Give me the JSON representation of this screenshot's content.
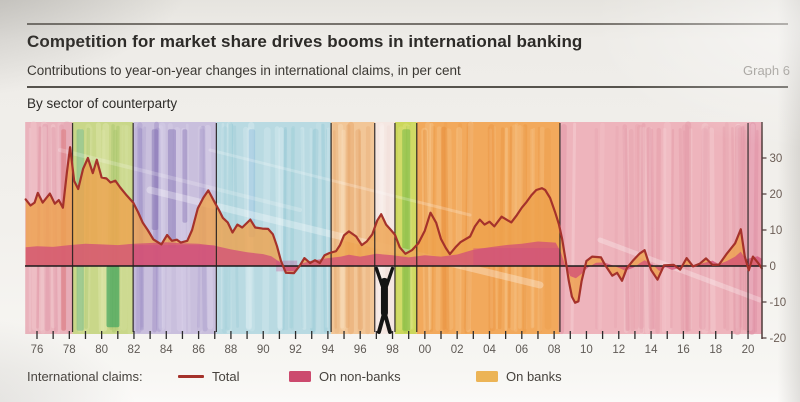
{
  "page": {
    "title": "Competition for market share drives booms in international banking",
    "subtitle": "Contributions to year-on-year changes in international claims, in per cent",
    "graph_label": "Graph 6",
    "panel_label": "By sector of counterparty"
  },
  "legend": {
    "prefix": "International claims:",
    "items": [
      {
        "label": "Total",
        "type": "line",
        "color": "#a5322b"
      },
      {
        "label": "On non-banks",
        "type": "area",
        "color": "#cc4a6e"
      },
      {
        "label": "On banks",
        "type": "area",
        "color": "#ecb456"
      }
    ]
  },
  "chart_data": {
    "type": "area",
    "title": "Competition for market share drives booms in international banking",
    "subtitle": "Contributions to year-on-year changes in international claims, in per cent",
    "panel": "By sector of counterparty",
    "xlabel": "",
    "ylabel": "per cent",
    "ylim": [
      -20,
      40
    ],
    "yticks": [
      [
        30,
        "30"
      ],
      [
        20,
        "20"
      ],
      [
        10,
        "10"
      ],
      [
        0,
        "0"
      ],
      [
        -10,
        "-10"
      ],
      [
        -20,
        "-20"
      ]
    ],
    "ytick_side": "right",
    "xtick_years_minor": [
      1976,
      2020
    ],
    "xticks": [
      [
        1976,
        "76"
      ],
      [
        1978,
        "78"
      ],
      [
        1980,
        "80"
      ],
      [
        1982,
        "82"
      ],
      [
        1984,
        "84"
      ],
      [
        1986,
        "86"
      ],
      [
        1988,
        "88"
      ],
      [
        1990,
        "90"
      ],
      [
        1992,
        "92"
      ],
      [
        1994,
        "94"
      ],
      [
        1996,
        "96"
      ],
      [
        1998,
        "98"
      ],
      [
        2000,
        "00"
      ],
      [
        2002,
        "02"
      ],
      [
        2004,
        "04"
      ],
      [
        2006,
        "06"
      ],
      [
        2008,
        "08"
      ],
      [
        2010,
        "10"
      ],
      [
        2012,
        "12"
      ],
      [
        2014,
        "14"
      ],
      [
        2016,
        "16"
      ],
      [
        2018,
        "18"
      ],
      [
        2020,
        "20"
      ]
    ],
    "grid": false,
    "legend_position": "bottom",
    "series": [
      {
        "name": "Total",
        "type": "line",
        "color": "#a5322b",
        "points": [
          [
            1975.3,
            18.5
          ],
          [
            1975.6,
            16.8
          ],
          [
            1975.85,
            17.6
          ],
          [
            1976.05,
            20.3
          ],
          [
            1976.35,
            17.6
          ],
          [
            1976.8,
            20.1
          ],
          [
            1977.1,
            17.3
          ],
          [
            1977.35,
            18.3
          ],
          [
            1977.6,
            16.2
          ],
          [
            1977.85,
            26
          ],
          [
            1978.05,
            33
          ],
          [
            1978.3,
            23.6
          ],
          [
            1978.55,
            21.4
          ],
          [
            1978.85,
            27
          ],
          [
            1979.15,
            30
          ],
          [
            1979.45,
            25.8
          ],
          [
            1979.7,
            29.5
          ],
          [
            1980,
            24.6
          ],
          [
            1980.3,
            24.3
          ],
          [
            1980.55,
            23.2
          ],
          [
            1980.85,
            23.7
          ],
          [
            1981.15,
            21.8
          ],
          [
            1981.55,
            19.6
          ],
          [
            1981.95,
            17.6
          ],
          [
            1982.25,
            15
          ],
          [
            1982.55,
            12
          ],
          [
            1982.85,
            10
          ],
          [
            1983.2,
            7.4
          ],
          [
            1983.7,
            6
          ],
          [
            1984.05,
            8.6
          ],
          [
            1984.35,
            7
          ],
          [
            1984.65,
            7.3
          ],
          [
            1984.9,
            6.5
          ],
          [
            1985.3,
            7
          ],
          [
            1985.6,
            10
          ],
          [
            1985.95,
            16
          ],
          [
            1986.3,
            19
          ],
          [
            1986.6,
            21
          ],
          [
            1987,
            17.6
          ],
          [
            1987.25,
            15.6
          ],
          [
            1987.5,
            13.4
          ],
          [
            1987.8,
            12.1
          ],
          [
            1988.1,
            9.3
          ],
          [
            1988.4,
            11.5
          ],
          [
            1988.7,
            10.7
          ],
          [
            1989.2,
            12.9
          ],
          [
            1989.5,
            10.7
          ],
          [
            1989.95,
            10.4
          ],
          [
            1990.3,
            10.3
          ],
          [
            1990.6,
            8.8
          ],
          [
            1990.85,
            5.5
          ],
          [
            1991.1,
            1.4
          ],
          [
            1991.4,
            -1.9
          ],
          [
            1991.9,
            -2
          ],
          [
            1992.25,
            0
          ],
          [
            1992.55,
            2.2
          ],
          [
            1992.9,
            0.8
          ],
          [
            1993.2,
            1.6
          ],
          [
            1993.5,
            0.8
          ],
          [
            1993.8,
            3
          ],
          [
            1994.1,
            3.6
          ],
          [
            1994.5,
            4.1
          ],
          [
            1994.75,
            5.8
          ],
          [
            1995,
            8.5
          ],
          [
            1995.3,
            9.6
          ],
          [
            1995.75,
            8.2
          ],
          [
            1996.1,
            5.8
          ],
          [
            1996.4,
            6.8
          ],
          [
            1996.75,
            8.8
          ],
          [
            1997.05,
            12.6
          ],
          [
            1997.3,
            14.4
          ],
          [
            1997.6,
            11.5
          ],
          [
            1997.9,
            10
          ],
          [
            1998.15,
            8.7
          ],
          [
            1998.45,
            5.2
          ],
          [
            1998.8,
            3.4
          ],
          [
            1999.2,
            4.4
          ],
          [
            1999.6,
            6.3
          ],
          [
            2000,
            9.8
          ],
          [
            2000.35,
            14.8
          ],
          [
            2000.7,
            12
          ],
          [
            2001,
            7.5
          ],
          [
            2001.3,
            5
          ],
          [
            2001.55,
            3.3
          ],
          [
            2001.9,
            5.2
          ],
          [
            2002.2,
            6.6
          ],
          [
            2002.8,
            8.2
          ],
          [
            2003.1,
            11
          ],
          [
            2003.4,
            12.9
          ],
          [
            2003.7,
            11.5
          ],
          [
            2004,
            12.3
          ],
          [
            2004.3,
            11
          ],
          [
            2004.75,
            13.7
          ],
          [
            2005.05,
            12.9
          ],
          [
            2005.35,
            12.1
          ],
          [
            2005.7,
            14.2
          ],
          [
            2006,
            16.2
          ],
          [
            2006.3,
            17.8
          ],
          [
            2006.6,
            19.7
          ],
          [
            2006.9,
            21.1
          ],
          [
            2007.25,
            21.6
          ],
          [
            2007.45,
            21.1
          ],
          [
            2007.75,
            18.9
          ],
          [
            2008.05,
            15.1
          ],
          [
            2008.3,
            11.5
          ],
          [
            2008.5,
            7.4
          ],
          [
            2008.7,
            2
          ],
          [
            2008.9,
            -4
          ],
          [
            2009.1,
            -8.5
          ],
          [
            2009.3,
            -10.2
          ],
          [
            2009.5,
            -9.8
          ],
          [
            2009.7,
            -4.2
          ],
          [
            2010,
            1.4
          ],
          [
            2010.35,
            2.6
          ],
          [
            2010.9,
            2.4
          ],
          [
            2011.15,
            0.3
          ],
          [
            2011.6,
            -2.7
          ],
          [
            2011.9,
            -1.9
          ],
          [
            2012.2,
            -4.1
          ],
          [
            2012.5,
            -0.6
          ],
          [
            2012.9,
            1.6
          ],
          [
            2013.3,
            3.5
          ],
          [
            2013.6,
            4.4
          ],
          [
            2014,
            -1.1
          ],
          [
            2014.4,
            -3.8
          ],
          [
            2014.8,
            0.2
          ],
          [
            2015.4,
            0.3
          ],
          [
            2015.8,
            -1
          ],
          [
            2016.2,
            2.2
          ],
          [
            2016.6,
            -0.1
          ],
          [
            2017,
            0.6
          ],
          [
            2017.4,
            2.1
          ],
          [
            2017.8,
            0.3
          ],
          [
            2018.2,
            0.4
          ],
          [
            2018.7,
            3.5
          ],
          [
            2019.2,
            6.3
          ],
          [
            2019.55,
            10.2
          ],
          [
            2019.8,
            2.6
          ],
          [
            2020.05,
            -1.2
          ],
          [
            2020.3,
            2.6
          ],
          [
            2020.6,
            1
          ],
          [
            2020.85,
            -0.6
          ]
        ]
      },
      {
        "name": "On non-banks",
        "type": "area",
        "color": "#d25177",
        "points": [
          [
            1975.3,
            5.2
          ],
          [
            1976,
            5.5
          ],
          [
            1977,
            5.3
          ],
          [
            1978,
            5.8
          ],
          [
            1979,
            6.2
          ],
          [
            1980,
            6
          ],
          [
            1981,
            5.8
          ],
          [
            1982,
            6.2
          ],
          [
            1983,
            6.4
          ],
          [
            1984,
            6.6
          ],
          [
            1985,
            6.3
          ],
          [
            1986,
            6.2
          ],
          [
            1987,
            5.6
          ],
          [
            1988,
            4.6
          ],
          [
            1989,
            3.8
          ],
          [
            1990,
            3.3
          ],
          [
            1990.5,
            2.7
          ],
          [
            1991,
            1.2
          ],
          [
            1991.4,
            -1.4
          ],
          [
            1991.9,
            -1.5
          ],
          [
            1992.3,
            0.6
          ],
          [
            1993,
            1.5
          ],
          [
            1994,
            2.2
          ],
          [
            1994.8,
            2.6
          ],
          [
            1995.3,
            3.1
          ],
          [
            1996,
            2.6
          ],
          [
            1997,
            3.4
          ],
          [
            1998,
            3
          ],
          [
            1999,
            2.4
          ],
          [
            2000,
            3
          ],
          [
            2001,
            2.6
          ],
          [
            2002,
            3.2
          ],
          [
            2003,
            4.5
          ],
          [
            2004,
            5.2
          ],
          [
            2005,
            5.8
          ],
          [
            2006,
            6.2
          ],
          [
            2007,
            6.8
          ],
          [
            2008.1,
            6.5
          ],
          [
            2008.4,
            4
          ],
          [
            2008.7,
            0
          ],
          [
            2009,
            -2.8
          ],
          [
            2009.35,
            -3.4
          ],
          [
            2009.7,
            -2.2
          ],
          [
            2010.1,
            -0.4
          ],
          [
            2010.6,
            0.9
          ],
          [
            2011.1,
            1
          ],
          [
            2011.6,
            0.2
          ],
          [
            2012.1,
            -0.7
          ],
          [
            2012.4,
            -1.3
          ],
          [
            2012.9,
            -0.5
          ],
          [
            2013.3,
            0.8
          ],
          [
            2013.6,
            1.6
          ],
          [
            2014.1,
            0.4
          ],
          [
            2014.5,
            -1.4
          ],
          [
            2014.9,
            -0.3
          ],
          [
            2015.3,
            -1.1
          ],
          [
            2015.8,
            -0.5
          ],
          [
            2016.2,
            0.5
          ],
          [
            2016.7,
            -0.3
          ],
          [
            2017.2,
            0.8
          ],
          [
            2017.8,
            1.5
          ],
          [
            2018.2,
            0.5
          ],
          [
            2018.7,
            1.4
          ],
          [
            2019.2,
            2.6
          ],
          [
            2019.55,
            4
          ],
          [
            2019.85,
            1.8
          ],
          [
            2020.2,
            2.3
          ],
          [
            2020.6,
            2.7
          ],
          [
            2020.85,
            2
          ]
        ]
      },
      {
        "name": "On banks",
        "type": "area",
        "color": "#eda14c",
        "note": "stacked on top of non-banks; equals Total minus On non-banks"
      }
    ],
    "episode_divider_years": [
      1978.2,
      1981.95,
      1987.1,
      1994.2,
      1996.9,
      1998.15,
      1999.5,
      2008.36,
      2020
    ],
    "background_bands": [
      {
        "from": 1975.27,
        "to": 1978.2,
        "base": "#eab3bc",
        "dark": "#dd8ea0",
        "light": "#f2cdd2"
      },
      {
        "from": 1978.2,
        "to": 1981.95,
        "base": "#c9d789",
        "dark": "#a3c469",
        "light": "#e0e8ae"
      },
      {
        "from": 1981.95,
        "to": 1987.1,
        "base": "#c9bfdd",
        "dark": "#9c8cc4",
        "light": "#e3ddf0"
      },
      {
        "from": 1987.1,
        "to": 1994.2,
        "base": "#b9dae2",
        "dark": "#8ec6d2",
        "light": "#ddeef2"
      },
      {
        "from": 1994.2,
        "to": 1996.9,
        "base": "#f2c697",
        "dark": "#e5a469",
        "light": "#f9e2c4"
      },
      {
        "from": 1996.9,
        "to": 1998.15,
        "base": "#f5e7e2",
        "dark": "#ecd2cb",
        "light": "#fbf4f1"
      },
      {
        "from": 1998.15,
        "to": 1999.5,
        "base": "#ccd75c",
        "dark": "#a6c44b",
        "light": "#e4ea94"
      },
      {
        "from": 1999.5,
        "to": 2008.36,
        "base": "#f2a95c",
        "dark": "#e78f3b",
        "light": "#f8cf9b"
      },
      {
        "from": 2008.36,
        "to": 2020,
        "base": "#eeb4bc",
        "dark": "#e092a1",
        "light": "#f7d6da"
      },
      {
        "from": 2020,
        "to": 2020.9,
        "base": "#eaa8b6",
        "dark": "#d8849b",
        "light": "#f3cbd4"
      }
    ],
    "background_accents": [
      {
        "from": 1977.5,
        "to": 1977.8,
        "vtop": 38,
        "vbot": -18,
        "color": "#d96f72",
        "opacity": 0.45
      },
      {
        "from": 1978.45,
        "to": 1978.9,
        "vtop": 38,
        "vbot": -18,
        "color": "#6fba8e",
        "opacity": 0.5
      },
      {
        "from": 1980.3,
        "to": 1981.1,
        "vtop": 0,
        "vbot": -17,
        "color": "#2f9e5c",
        "opacity": 0.6
      },
      {
        "from": 1983.1,
        "to": 1983.5,
        "vtop": 38,
        "vbot": 10,
        "color": "#7f6cb0",
        "opacity": 0.45
      },
      {
        "from": 1984.1,
        "to": 1984.6,
        "vtop": 38,
        "vbot": 5,
        "color": "#8574b6",
        "opacity": 0.5
      },
      {
        "from": 1985,
        "to": 1985.3,
        "vtop": 38,
        "vbot": 12,
        "color": "#7f6cb0",
        "opacity": 0.4
      },
      {
        "from": 1989.1,
        "to": 1989.5,
        "vtop": 38,
        "vbot": 8,
        "color": "#7fb3d9",
        "opacity": 0.35
      },
      {
        "from": 1998.6,
        "to": 1999.1,
        "vtop": 38,
        "vbot": -18,
        "color": "#76b844",
        "opacity": 0.55
      }
    ],
    "area_accents": [
      {
        "from": 1982,
        "to": 1987,
        "vtop": 5.8,
        "vbot": 0.2,
        "color": "#c8418b",
        "opacity": 0.35
      },
      {
        "from": 2003,
        "to": 2008.3,
        "vtop": 5,
        "vbot": 0.3,
        "color": "#cb4488",
        "opacity": 0.3
      },
      {
        "from": 1990.8,
        "to": 1992.1,
        "vtop": 1.5,
        "vbot": -1.5,
        "color": "#c8418b",
        "opacity": 0.3
      }
    ],
    "figure_annotation": {
      "description": "black human silhouette with raised arms holding up the zero line",
      "x_year": 1997.5
    }
  }
}
